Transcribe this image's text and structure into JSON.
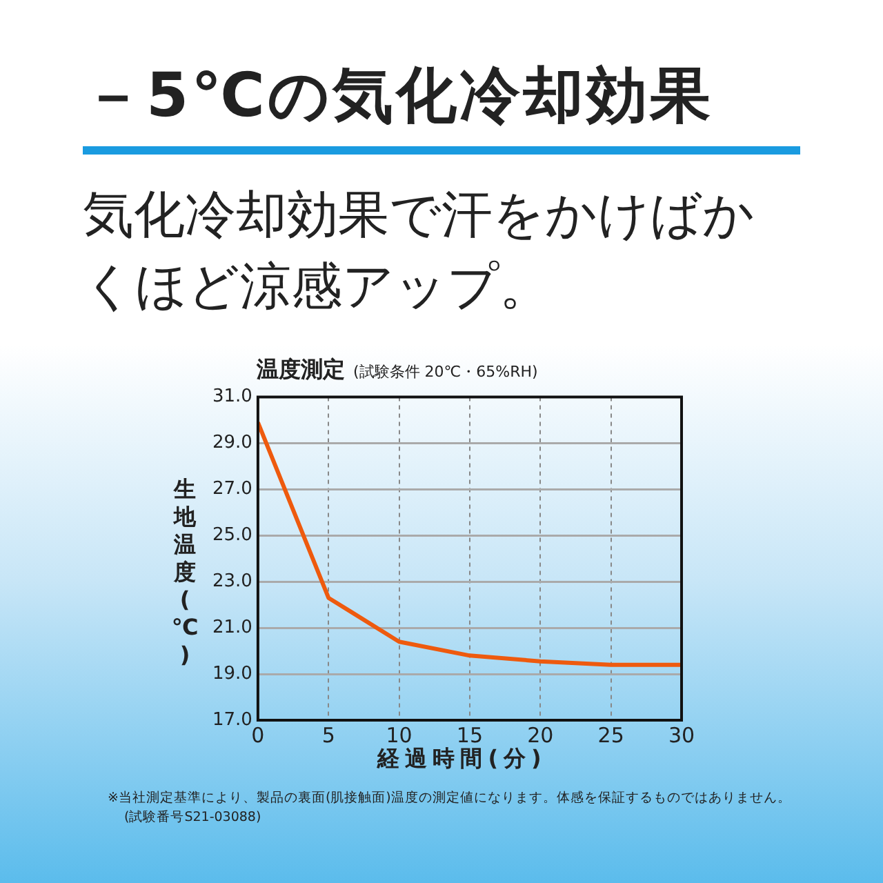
{
  "chart_data": {
    "type": "line",
    "title": "温度測定",
    "subtitle": "(試験条件 20℃・65%RH)",
    "xlabel": "経過時間(分)",
    "ylabel": "生地温度(℃)",
    "annotations": [
      "－5℃の気化冷却効果",
      "気化冷却効果で汗をかけばかくほど涼感アップ。",
      "※当社測定基準により、製品の裏面(肌接触面)温度の測定値になります。体感を保証するものではありません。",
      "(試験番号S21-03088)"
    ],
    "x": [
      0,
      5,
      10,
      15,
      20,
      25,
      30
    ],
    "series": [
      {
        "color": "#ee5a0e",
        "values": [
          29.9,
          22.3,
          20.4,
          19.8,
          19.55,
          19.4,
          19.4
        ]
      }
    ],
    "xlim": [
      0,
      30
    ],
    "xticks": [
      0,
      5,
      10,
      15,
      20,
      25,
      30
    ],
    "ylim": [
      17,
      31
    ],
    "yticks": [
      {
        "value": 17,
        "label": "17.0"
      },
      {
        "value": 19,
        "label": "19.0"
      },
      {
        "value": 21,
        "label": "21.0"
      },
      {
        "value": 23,
        "label": "23.0"
      },
      {
        "value": 25,
        "label": "25.0"
      },
      {
        "value": 27,
        "label": "27.0"
      },
      {
        "value": 29,
        "label": "29.0"
      },
      {
        "value": 31,
        "label": "31.0"
      }
    ],
    "grid": true,
    "legend": false,
    "marker": "none",
    "line_style": "solid"
  }
}
